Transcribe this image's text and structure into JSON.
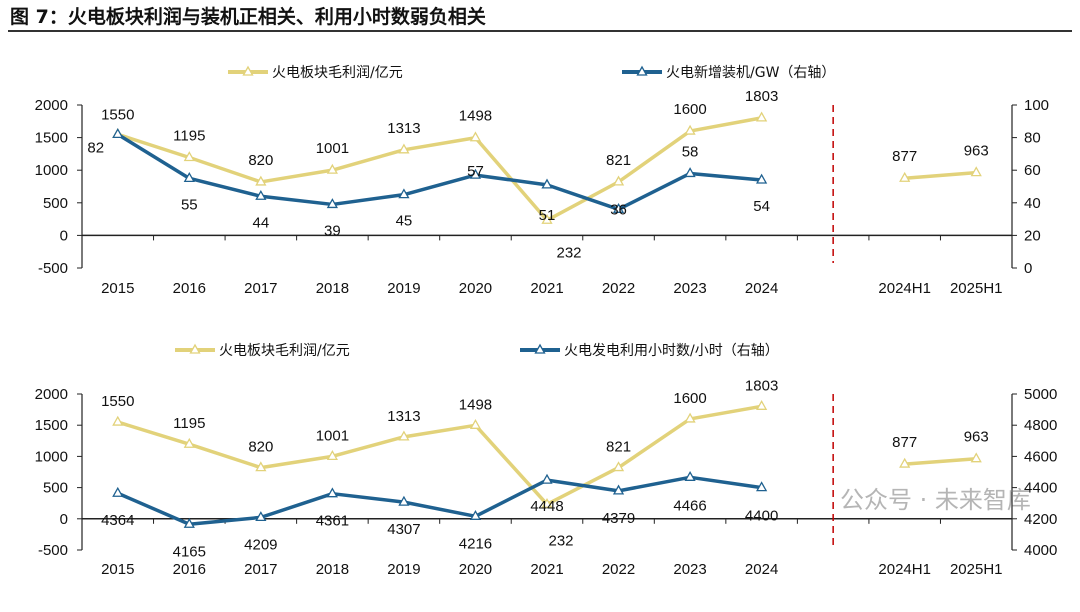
{
  "title": "图 7：火电板块利润与装机正相关、利用小时数弱负相关",
  "watermark": "公众号 · 未来智库",
  "colors": {
    "profit": "#E2D27A",
    "blue": "#1F6190",
    "divider": "#C00000"
  },
  "chart_data": [
    {
      "type": "line",
      "categories": [
        "2015",
        "2016",
        "2017",
        "2018",
        "2019",
        "2020",
        "2021",
        "2022",
        "2023",
        "2024",
        "",
        "2024H1",
        "2025H1"
      ],
      "ylim": [
        -500,
        2000
      ],
      "yticks": [
        -500,
        0,
        500,
        1000,
        1500,
        2000
      ],
      "y2lim": [
        0,
        100
      ],
      "y2ticks": [
        0,
        20,
        40,
        60,
        80,
        100
      ],
      "legend_position": "top",
      "series": [
        {
          "name": "火电板块毛利润/亿元",
          "axis": "left",
          "values": [
            1550,
            1195,
            820,
            1001,
            1313,
            1498,
            232,
            821,
            1600,
            1803,
            null,
            877,
            963
          ]
        },
        {
          "name": "火电新增装机/GW（右轴）",
          "axis": "right",
          "values": [
            82,
            55,
            44,
            39,
            45,
            57,
            51,
            36,
            58,
            54,
            null,
            null,
            null
          ]
        }
      ]
    },
    {
      "type": "line",
      "categories": [
        "2015",
        "2016",
        "2017",
        "2018",
        "2019",
        "2020",
        "2021",
        "2022",
        "2023",
        "2024",
        "",
        "2024H1",
        "2025H1"
      ],
      "ylim": [
        -500,
        2000
      ],
      "yticks": [
        -500,
        0,
        500,
        1000,
        1500,
        2000
      ],
      "y2lim": [
        4000,
        5000
      ],
      "y2ticks": [
        4000,
        4200,
        4400,
        4600,
        4800,
        5000
      ],
      "legend_position": "top",
      "series": [
        {
          "name": "火电板块毛利润/亿元",
          "axis": "left",
          "values": [
            1550,
            1195,
            820,
            1001,
            1313,
            1498,
            232,
            821,
            1600,
            1803,
            null,
            877,
            963
          ]
        },
        {
          "name": "火电发电利用小时数/小时（右轴）",
          "axis": "right",
          "values": [
            4364,
            4165,
            4209,
            4361,
            4307,
            4216,
            4448,
            4379,
            4466,
            4400,
            null,
            null,
            null
          ]
        }
      ]
    }
  ]
}
